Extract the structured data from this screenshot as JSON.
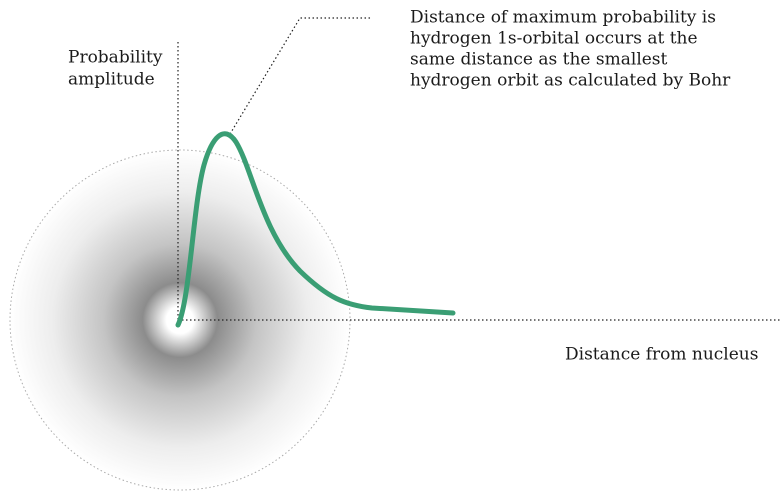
{
  "axes": {
    "y_label": [
      "Probability",
      "amplitude"
    ],
    "x_label": "Distance from nucleus"
  },
  "annotation": {
    "lines": [
      "Distance of maximum probability is",
      "hydrogen 1s-orbital occurs at the",
      "same distance as the smallest",
      "hydrogen orbit as calculated by Bohr"
    ]
  }
}
